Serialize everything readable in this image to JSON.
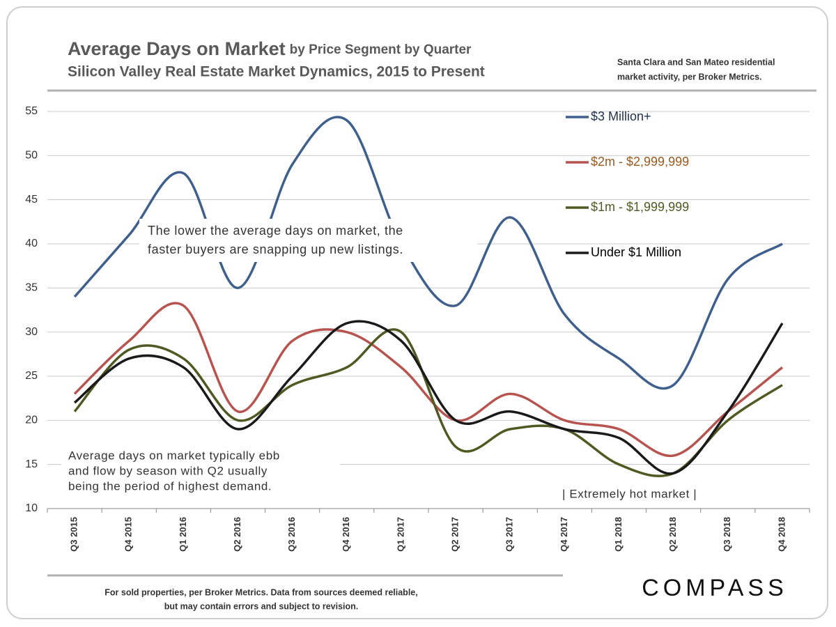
{
  "chart_data": {
    "type": "line",
    "title": "Average Days on Market",
    "title_suffix": "by Price Segment by Quarter",
    "subtitle": "Silicon Valley Real Estate Market Dynamics, 2015 to Present",
    "note": [
      "Santa Clara and San Mateo residential",
      "market activity, per Broker Metrics."
    ],
    "footnote": [
      "For sold properties, per Broker Metrics. Data from sources deemed reliable,",
      "but may contain errors and subject to revision."
    ],
    "brand": "COMPASS",
    "annotations": [
      {
        "lines": [
          "The lower the average days on market, the",
          "faster buyers are snapping up new listings."
        ]
      },
      {
        "lines": [
          "Average days on market typically ebb",
          "and flow by season with Q2 usually",
          "being the period of highest demand."
        ]
      },
      {
        "lines": [
          "| Extremely hot market |"
        ]
      }
    ],
    "categories": [
      "Q3 2015",
      "Q4 2015",
      "Q1 2016",
      "Q2 2016",
      "Q3 2016",
      "Q4 2016",
      "Q1 2017",
      "Q2 2017",
      "Q3 2017",
      "Q4 2017",
      "Q1 2018",
      "Q2 2018",
      "Q3 2018",
      "Q4 2018"
    ],
    "series": [
      {
        "name": "$3 Million+",
        "color": "#3f5f8c",
        "legend_text_color": "#1f3050",
        "values": [
          34,
          41,
          48,
          35,
          49,
          54,
          40,
          33,
          43,
          32,
          27,
          24,
          36,
          40
        ]
      },
      {
        "name": "$2m - $2,999,999",
        "color": "#b85450",
        "legend_text_color": "#9a5a1e",
        "values": [
          23,
          29,
          33,
          21,
          29,
          30,
          26,
          20,
          23,
          20,
          19,
          16,
          21,
          26
        ]
      },
      {
        "name": "$1m - $1,999,999",
        "color": "#4f5a22",
        "legend_text_color": "#4f5a22",
        "values": [
          21,
          28,
          27,
          20,
          24,
          26,
          30,
          17,
          19,
          19,
          15,
          14,
          20,
          24
        ]
      },
      {
        "name": "Under $1 Million",
        "color": "#1a1a1a",
        "legend_text_color": "#000000",
        "values": [
          22,
          27,
          26,
          19,
          25,
          31,
          29,
          20,
          21,
          19,
          18,
          14,
          21,
          31
        ]
      }
    ],
    "ylim": [
      10,
      55
    ],
    "yticks": [
      10,
      15,
      20,
      25,
      30,
      35,
      40,
      45,
      50,
      55
    ],
    "grid": true,
    "legend": "top-right"
  }
}
